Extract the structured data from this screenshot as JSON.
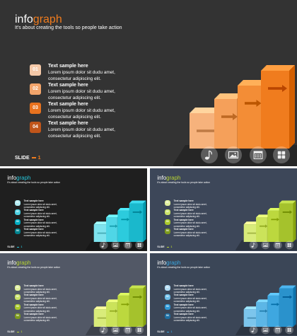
{
  "brand": {
    "part1": "info",
    "part2": "graph"
  },
  "tagline": "It's about creating the tools so people take action",
  "items": [
    {
      "num": "01",
      "title": "Text sample here",
      "line1": "Lorem ipsum dolor sit dudu amet,",
      "line2": "consectetur adipiscing elit."
    },
    {
      "num": "02",
      "title": "Text sample here",
      "line1": "Lorem ipsum dolor sit dudu amet,",
      "line2": "consectetur adipiscing elit."
    },
    {
      "num": "03",
      "title": "Text sample here",
      "line1": "Lorem ipsum dolor sit dudu amet,",
      "line2": "consectetur adipiscing elit."
    },
    {
      "num": "04",
      "title": "Text sample here",
      "line1": "Lorem ipsum dolor sit dudu amet,",
      "line2": "consectetur adipiscing elit."
    }
  ],
  "footer": {
    "label": "SLIDE",
    "number": "1"
  },
  "icons": [
    "music-note-icon",
    "image-icon",
    "calendar-icon",
    "grid-icon"
  ],
  "variants": [
    {
      "bg": "#333333",
      "accent": "#f07c1e",
      "box_colors": [
        "#f5c9a8",
        "#f3a56b",
        "#e8721e",
        "#c0551a"
      ],
      "bar_colors": [
        "#f6b27c",
        "#f5a05a",
        "#f38d36",
        "#f07c1e"
      ]
    },
    {
      "bg": "#1f1f1f",
      "accent": "#26c6da",
      "box_colors": [
        "#b2ebf2",
        "#4dd0e1",
        "#00acc1",
        "#00838f"
      ],
      "bar_colors": [
        "#7ee3ee",
        "#4fd6e6",
        "#2ccbdd",
        "#1ab8cc"
      ]
    },
    {
      "bg": "#3d4759",
      "accent": "#b8d432",
      "box_colors": [
        "#e0ef9e",
        "#cbe36a",
        "#a9c92c",
        "#7d9a1e"
      ],
      "bar_colors": [
        "#d9ec7a",
        "#cbe35a",
        "#bcd83e",
        "#a5c22c"
      ]
    },
    {
      "bg": "#525866",
      "accent": "#b8d432",
      "box_colors": [
        "#e0ef9e",
        "#cbe36a",
        "#a9c92c",
        "#7d9a1e"
      ],
      "bar_colors": [
        "#d9ec7a",
        "#cbe35a",
        "#bcd83e",
        "#a5c22c"
      ]
    },
    {
      "bg": "#3b4657",
      "accent": "#3aa7e0",
      "box_colors": [
        "#b3dcf3",
        "#6fbfe9",
        "#2f98d6",
        "#1e6fa3"
      ],
      "bar_colors": [
        "#7cc5ec",
        "#5cb6e6",
        "#3ea7e0",
        "#2a92cc"
      ]
    }
  ]
}
